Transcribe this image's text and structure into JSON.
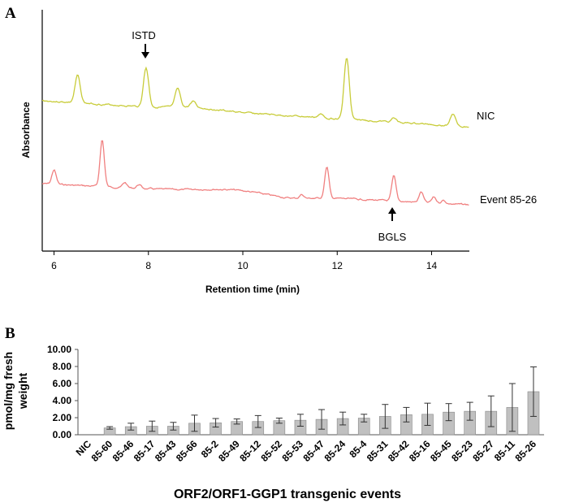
{
  "chart_data": [
    {
      "panel": "A",
      "type": "line",
      "title": "",
      "xlabel": "Retention time (min)",
      "ylabel": "Absorbance",
      "xlim": [
        5.75,
        14.8
      ],
      "x_ticks": [
        6,
        8,
        10,
        12,
        14
      ],
      "series": [
        {
          "name": "NIC",
          "color": "#c8cc3a",
          "baseline": 0.0,
          "peaks": [
            [
              6.5,
              0.42
            ],
            [
              7.95,
              0.6
            ],
            [
              8.62,
              0.28
            ],
            [
              8.95,
              0.1
            ],
            [
              11.65,
              0.05
            ],
            [
              12.2,
              0.95
            ],
            [
              13.2,
              0.06
            ],
            [
              14.45,
              0.18
            ]
          ]
        },
        {
          "name": "Event 85-26",
          "color": "#f08080",
          "baseline": 0.0,
          "peaks": [
            [
              6.0,
              0.22
            ],
            [
              7.02,
              0.72
            ],
            [
              7.5,
              0.08
            ],
            [
              7.8,
              0.06
            ],
            [
              11.25,
              0.06
            ],
            [
              11.78,
              0.48
            ],
            [
              13.2,
              0.38
            ],
            [
              13.78,
              0.16
            ],
            [
              14.05,
              0.09
            ],
            [
              14.25,
              0.05
            ]
          ]
        }
      ],
      "annotations": [
        {
          "label": "ISTD",
          "x": 7.95,
          "series": "NIC",
          "position": "above"
        },
        {
          "label": "BGLS",
          "x": 13.2,
          "series": "Event 85-26",
          "position": "below"
        }
      ]
    },
    {
      "panel": "B",
      "type": "bar",
      "title": "",
      "xlabel": "ORF2/ORF1-GGP1 transgenic events",
      "ylabel": "pmol/mg fresh weight",
      "ylim": [
        0,
        10
      ],
      "y_ticks": [
        "0.00",
        "2.00",
        "4.00",
        "6.00",
        "8.00",
        "10.00"
      ],
      "categories": [
        "NIC",
        "85-60",
        "85-46",
        "85-17",
        "85-43",
        "85-66",
        "85-2",
        "85-49",
        "85-12",
        "85-52",
        "85-53",
        "85-47",
        "85-24",
        "85-4",
        "85-31",
        "85-42",
        "85-16",
        "85-45",
        "85-23",
        "85-27",
        "85-11",
        "85-26"
      ],
      "values": [
        0.0,
        0.8,
        0.95,
        1.0,
        1.0,
        1.35,
        1.4,
        1.55,
        1.55,
        1.65,
        1.7,
        1.8,
        1.9,
        1.95,
        2.15,
        2.35,
        2.4,
        2.65,
        2.75,
        2.75,
        3.2,
        5.05
      ],
      "errors": [
        0.0,
        0.15,
        0.4,
        0.6,
        0.45,
        0.95,
        0.5,
        0.3,
        0.7,
        0.3,
        0.7,
        1.15,
        0.75,
        0.45,
        1.4,
        0.85,
        1.3,
        1.0,
        1.05,
        1.8,
        2.8,
        2.9
      ],
      "bar_color": "#c0c0c0"
    }
  ],
  "labels": {
    "panel_a": "A",
    "panel_b": "B",
    "nic": "NIC",
    "event": "Event 85-26",
    "istd": "ISTD",
    "bgls": "BGLS",
    "absorbance": "Absorbance",
    "retention": "Retention time (min)",
    "ylabel_line1": "pmol/mg fresh",
    "ylabel_line2": "weight",
    "b_xlabel": "ORF2/ORF1-GGP1 transgenic events"
  }
}
